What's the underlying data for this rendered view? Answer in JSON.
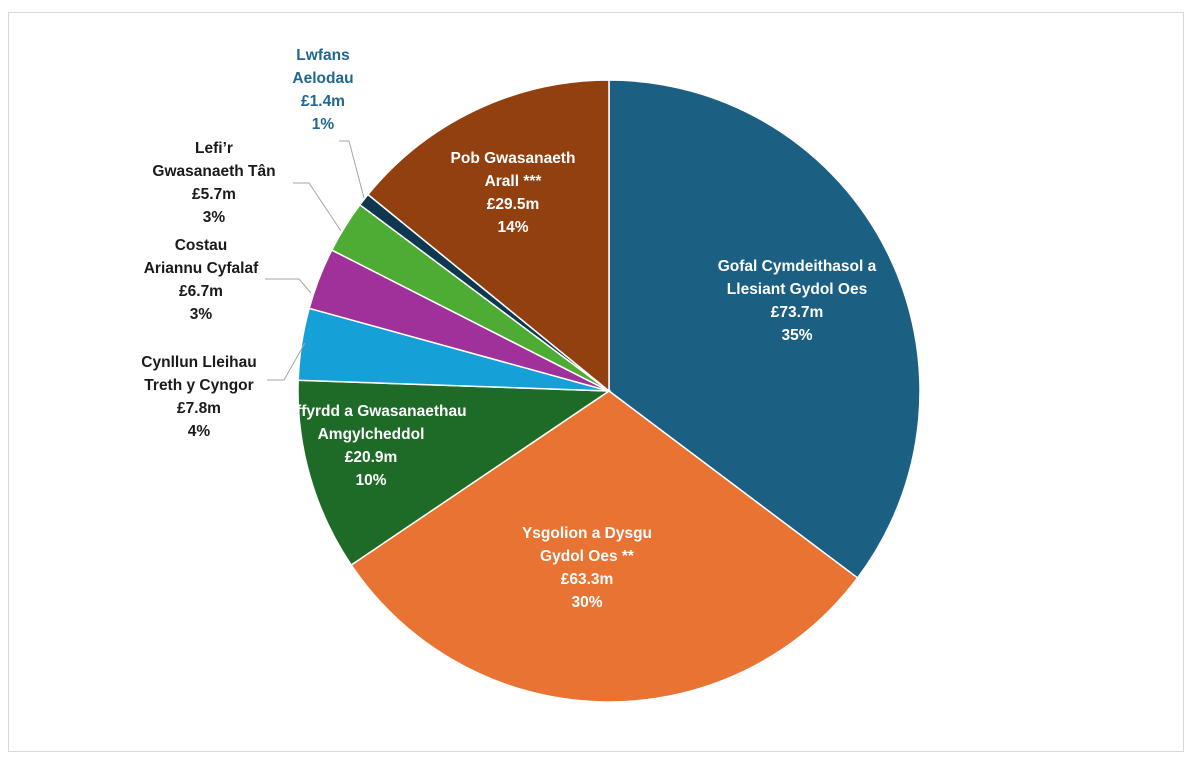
{
  "chart_data": {
    "type": "pie",
    "slices": [
      {
        "lines": [
          "Gofal Cymdeithasol a",
          "Llesiant Gydol Oes"
        ],
        "value": "£73.7m",
        "percent": "35%",
        "amount": 73.7,
        "color": "#1b5f83"
      },
      {
        "lines": [
          "Ysgolion a Dysgu",
          "Gydol Oes **"
        ],
        "value": "£63.3m",
        "percent": "30%",
        "amount": 63.3,
        "color": "#e97332"
      },
      {
        "lines": [
          "Priffyrdd a Gwasanaethau",
          "Amgylcheddol"
        ],
        "value": "£20.9m",
        "percent": "10%",
        "amount": 20.9,
        "color": "#1e6b27"
      },
      {
        "lines": [
          "Cynllun Lleihau",
          "Treth y Cyngor"
        ],
        "value": "£7.8m",
        "percent": "4%",
        "amount": 7.8,
        "color": "#16a0d8"
      },
      {
        "lines": [
          "Costau",
          "Ariannu Cyfalaf"
        ],
        "value": "£6.7m",
        "percent": "3%",
        "amount": 6.7,
        "color": "#a0309a"
      },
      {
        "lines": [
          "Lefi’r",
          "Gwasanaeth Tân"
        ],
        "value": "£5.7m",
        "percent": "3%",
        "amount": 5.7,
        "color": "#4eac35"
      },
      {
        "lines": [
          "Lwfans",
          "Aelodau"
        ],
        "value": "£1.4m",
        "percent": "1%",
        "amount": 1.4,
        "color": "#0f3850"
      },
      {
        "lines": [
          "Pob Gwasanaeth",
          "Arall ***"
        ],
        "value": "£29.5m",
        "percent": "14%",
        "amount": 29.5,
        "color": "#934010"
      }
    ],
    "start_angle": "12 o'clock",
    "direction": "clockwise",
    "legend": "none",
    "label_colors": {
      "inside": "#ffffff",
      "outside": "#1a1a1a",
      "members_allowance": "#1f6791",
      "leader_line": "#a6a6a6"
    }
  }
}
